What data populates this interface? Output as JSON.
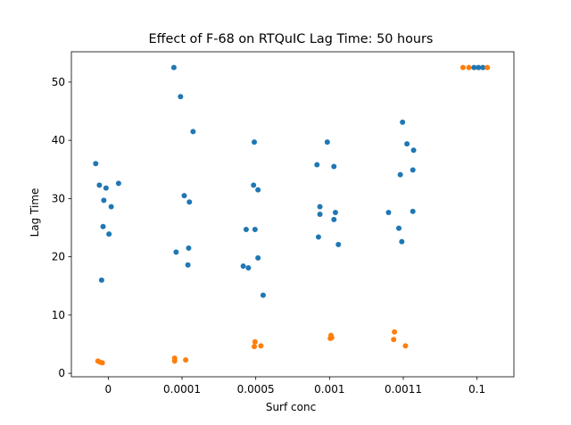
{
  "chart_data": {
    "type": "scatter",
    "title": "Effect of F-68 on RTQuIC Lag Time: 50 hours",
    "xlabel": "Surf conc",
    "ylabel": "Lag Time",
    "categories": [
      "0",
      "0.0001",
      "0.0005",
      "0.001",
      "0.0011",
      "0.1"
    ],
    "xlim": [
      -0.5,
      5.5
    ],
    "ylim": [
      -0.6,
      55.2
    ],
    "yticks": [
      0,
      10,
      20,
      30,
      40,
      50
    ],
    "grid": false,
    "legend": "none",
    "series": [
      {
        "color": "#1f77b4",
        "points": [
          {
            "cat": 0,
            "jitter": -0.17,
            "y": 36.0
          },
          {
            "cat": 0,
            "jitter": -0.12,
            "y": 32.3
          },
          {
            "cat": 0,
            "jitter": -0.03,
            "y": 31.8
          },
          {
            "cat": 0,
            "jitter": 0.14,
            "y": 32.6
          },
          {
            "cat": 0,
            "jitter": -0.06,
            "y": 29.7
          },
          {
            "cat": 0,
            "jitter": 0.04,
            "y": 28.6
          },
          {
            "cat": 0,
            "jitter": -0.07,
            "y": 25.2
          },
          {
            "cat": 0,
            "jitter": 0.01,
            "y": 23.9
          },
          {
            "cat": 0,
            "jitter": -0.09,
            "y": 16.0
          },
          {
            "cat": 1,
            "jitter": -0.11,
            "y": 52.5
          },
          {
            "cat": 1,
            "jitter": -0.02,
            "y": 47.5
          },
          {
            "cat": 1,
            "jitter": 0.15,
            "y": 41.5
          },
          {
            "cat": 1,
            "jitter": 0.03,
            "y": 30.5
          },
          {
            "cat": 1,
            "jitter": 0.1,
            "y": 29.4
          },
          {
            "cat": 1,
            "jitter": 0.09,
            "y": 21.5
          },
          {
            "cat": 1,
            "jitter": -0.08,
            "y": 20.8
          },
          {
            "cat": 1,
            "jitter": 0.08,
            "y": 18.6
          },
          {
            "cat": 2,
            "jitter": -0.02,
            "y": 39.7
          },
          {
            "cat": 2,
            "jitter": -0.03,
            "y": 32.3
          },
          {
            "cat": 2,
            "jitter": 0.03,
            "y": 31.5
          },
          {
            "cat": 2,
            "jitter": -0.13,
            "y": 24.7
          },
          {
            "cat": 2,
            "jitter": -0.01,
            "y": 24.7
          },
          {
            "cat": 2,
            "jitter": 0.03,
            "y": 19.8
          },
          {
            "cat": 2,
            "jitter": -0.17,
            "y": 18.4
          },
          {
            "cat": 2,
            "jitter": -0.1,
            "y": 18.1
          },
          {
            "cat": 2,
            "jitter": 0.1,
            "y": 13.4
          },
          {
            "cat": 3,
            "jitter": -0.03,
            "y": 39.7
          },
          {
            "cat": 3,
            "jitter": -0.17,
            "y": 35.8
          },
          {
            "cat": 3,
            "jitter": 0.06,
            "y": 35.5
          },
          {
            "cat": 3,
            "jitter": -0.13,
            "y": 28.6
          },
          {
            "cat": 3,
            "jitter": -0.13,
            "y": 27.3
          },
          {
            "cat": 3,
            "jitter": 0.08,
            "y": 27.6
          },
          {
            "cat": 3,
            "jitter": 0.06,
            "y": 26.4
          },
          {
            "cat": 3,
            "jitter": -0.15,
            "y": 23.4
          },
          {
            "cat": 3,
            "jitter": 0.12,
            "y": 22.1
          },
          {
            "cat": 4,
            "jitter": -0.01,
            "y": 43.1
          },
          {
            "cat": 4,
            "jitter": 0.05,
            "y": 39.4
          },
          {
            "cat": 4,
            "jitter": 0.14,
            "y": 38.3
          },
          {
            "cat": 4,
            "jitter": 0.13,
            "y": 34.9
          },
          {
            "cat": 4,
            "jitter": -0.04,
            "y": 34.1
          },
          {
            "cat": 4,
            "jitter": -0.2,
            "y": 27.6
          },
          {
            "cat": 4,
            "jitter": 0.13,
            "y": 27.8
          },
          {
            "cat": 4,
            "jitter": -0.06,
            "y": 24.9
          },
          {
            "cat": 4,
            "jitter": -0.02,
            "y": 22.6
          },
          {
            "cat": 5,
            "jitter": -0.04,
            "y": 52.5
          },
          {
            "cat": 5,
            "jitter": 0.02,
            "y": 52.5
          },
          {
            "cat": 5,
            "jitter": 0.08,
            "y": 52.5
          }
        ]
      },
      {
        "color": "#ff7f0e",
        "points": [
          {
            "cat": 0,
            "jitter": -0.14,
            "y": 2.1
          },
          {
            "cat": 0,
            "jitter": -0.08,
            "y": 1.8
          },
          {
            "cat": 0,
            "jitter": -0.11,
            "y": 1.9
          },
          {
            "cat": 1,
            "jitter": -0.1,
            "y": 2.1
          },
          {
            "cat": 1,
            "jitter": -0.1,
            "y": 2.6
          },
          {
            "cat": 1,
            "jitter": 0.05,
            "y": 2.3
          },
          {
            "cat": 2,
            "jitter": -0.01,
            "y": 5.4
          },
          {
            "cat": 2,
            "jitter": -0.02,
            "y": 4.6
          },
          {
            "cat": 2,
            "jitter": 0.07,
            "y": 4.7
          },
          {
            "cat": 3,
            "jitter": 0.02,
            "y": 6.5
          },
          {
            "cat": 3,
            "jitter": 0.03,
            "y": 6.1
          },
          {
            "cat": 3,
            "jitter": 0.01,
            "y": 6.0
          },
          {
            "cat": 4,
            "jitter": -0.12,
            "y": 7.1
          },
          {
            "cat": 4,
            "jitter": -0.13,
            "y": 5.8
          },
          {
            "cat": 4,
            "jitter": 0.03,
            "y": 4.7
          },
          {
            "cat": 5,
            "jitter": -0.19,
            "y": 52.5
          },
          {
            "cat": 5,
            "jitter": -0.11,
            "y": 52.5
          },
          {
            "cat": 5,
            "jitter": 0.14,
            "y": 52.5
          }
        ]
      }
    ]
  }
}
